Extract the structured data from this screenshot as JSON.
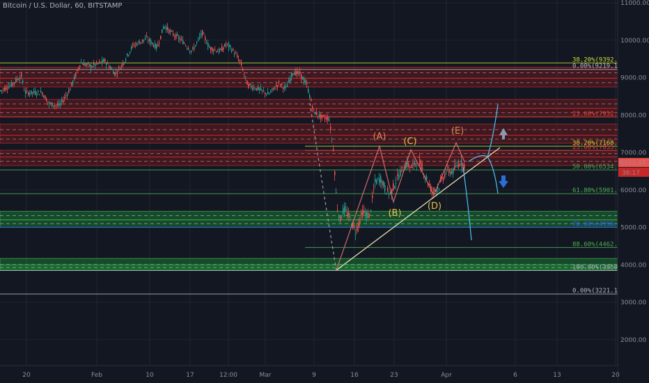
{
  "chart_title": "Bitcoin / U.S. Dollar, 60, BITSTAMP",
  "colors": {
    "background": "#131722",
    "up": "#26a69a",
    "down": "#ef5350",
    "resistance_zone": "#b71c1c",
    "support_zone": "#1b8a3a",
    "fib_yellow": "#cddc39",
    "fib_green": "#4caf50",
    "fib_blue": "#2962ff",
    "fib_red": "#f44336",
    "trend_line": "#e6e0b0",
    "arrow_up": "#8a9bb5",
    "arrow_down": "#2a6fd6"
  },
  "chart_data": {
    "type": "candlestick",
    "y_axis": {
      "scale": "linear",
      "range": [
        1150,
        11100
      ],
      "ticks": [
        "11000.00",
        "10000.00",
        "9000.00",
        "8000.00",
        "7000.00",
        "6000.00",
        "5000.00",
        "4000.00",
        "3000.00",
        "2000.00"
      ],
      "tick_values": [
        11000,
        10000,
        9000,
        8000,
        7000,
        6000,
        5000,
        4000,
        3000,
        2000
      ]
    },
    "x_axis": {
      "tick_labels": [
        "20",
        "Feb",
        "10",
        "17",
        "12:00",
        "Mar",
        "9",
        "16",
        "23",
        "Apr",
        "6",
        "13",
        "20"
      ]
    },
    "price_path": [
      [
        0,
        8650
      ],
      [
        15,
        8800
      ],
      [
        30,
        9050
      ],
      [
        35,
        8600
      ],
      [
        60,
        8600
      ],
      [
        70,
        8300
      ],
      [
        85,
        8250
      ],
      [
        100,
        8700
      ],
      [
        115,
        9400
      ],
      [
        130,
        9300
      ],
      [
        150,
        9450
      ],
      [
        165,
        9100
      ],
      [
        175,
        9350
      ],
      [
        190,
        9850
      ],
      [
        210,
        10050
      ],
      [
        225,
        9800
      ],
      [
        235,
        10400
      ],
      [
        245,
        10200
      ],
      [
        260,
        10000
      ],
      [
        275,
        9700
      ],
      [
        290,
        10200
      ],
      [
        300,
        9800
      ],
      [
        315,
        9700
      ],
      [
        325,
        9900
      ],
      [
        335,
        9700
      ],
      [
        345,
        9400
      ],
      [
        355,
        8800
      ],
      [
        370,
        8700
      ],
      [
        385,
        8550
      ],
      [
        400,
        8850
      ],
      [
        410,
        8700
      ],
      [
        420,
        9150
      ],
      [
        430,
        9100
      ],
      [
        440,
        8800
      ],
      [
        450,
        8100
      ],
      [
        460,
        7950
      ],
      [
        472,
        7900
      ],
      [
        478,
        7100
      ],
      [
        483,
        5600
      ],
      [
        488,
        5200
      ],
      [
        493,
        5500
      ],
      [
        500,
        5300
      ],
      [
        510,
        4900
      ],
      [
        520,
        5400
      ],
      [
        530,
        5300
      ],
      [
        538,
        6200
      ],
      [
        546,
        6300
      ],
      [
        553,
        6000
      ],
      [
        560,
        5900
      ],
      [
        567,
        6200
      ],
      [
        575,
        6500
      ],
      [
        583,
        6700
      ],
      [
        590,
        6600
      ],
      [
        600,
        6800
      ],
      [
        610,
        6400
      ],
      [
        620,
        5950
      ],
      [
        630,
        6100
      ],
      [
        640,
        6500
      ],
      [
        650,
        6500
      ],
      [
        660,
        6750
      ],
      [
        667,
        6650
      ]
    ],
    "current_price": {
      "value": 6723.47,
      "label": "6723.47",
      "countdown": "36:17"
    },
    "zones": {
      "resistance": [
        [
          8980,
          9280
        ],
        [
          8750,
          8980
        ],
        [
          8180,
          8420
        ],
        [
          7950,
          8180
        ],
        [
          7460,
          7760
        ],
        [
          7250,
          7460
        ],
        [
          6880,
          7060
        ],
        [
          6650,
          6880
        ]
      ],
      "support": [
        [
          5200,
          5430
        ],
        [
          5000,
          5200
        ],
        [
          3850,
          4170
        ],
        [
          3850,
          4000
        ]
      ]
    },
    "fib_levels": [
      {
        "label": "38.20%(9392.68)",
        "value": 9392.68,
        "color": "#cddc39"
      },
      {
        "label": "0.00%(9219.13)",
        "value": 9219.13,
        "color": "#b2b5be"
      },
      {
        "label": "23.60%(7952.02)",
        "value": 7952.02,
        "color": "#f44336"
      },
      {
        "label": "38.20%(7168.12)",
        "value": 7168.12,
        "color": "#cddc39"
      },
      {
        "label": "23.60%(7055.92)",
        "value": 7055.92,
        "color": "#f44336"
      },
      {
        "label": "50.00%(6534.57)",
        "value": 6534.57,
        "color": "#4caf50"
      },
      {
        "label": "61.80%(5901.01)",
        "value": 5901.01,
        "color": "#4caf50"
      },
      {
        "label": "78.60%(4998.99)",
        "value": 4998.99,
        "color": "#2962ff"
      },
      {
        "label": "88.60%(4462.08)",
        "value": 4462.08,
        "color": "#4caf50"
      },
      {
        "label": "100.00%(3850.00)",
        "value": 3850.0,
        "color": "#b2b5be"
      },
      {
        "label": "0.00%(3221.14)",
        "value": 3221.14,
        "color": "#b2b5be"
      }
    ],
    "wave_labels": [
      {
        "label": "(A)",
        "color": "#e08850"
      },
      {
        "label": "(B)",
        "color": "#e6c14a"
      },
      {
        "label": "(C)",
        "color": "#e6c14a"
      },
      {
        "label": "(D)",
        "color": "#e6c14a"
      },
      {
        "label": "(E)",
        "color": "#e08850"
      }
    ]
  }
}
